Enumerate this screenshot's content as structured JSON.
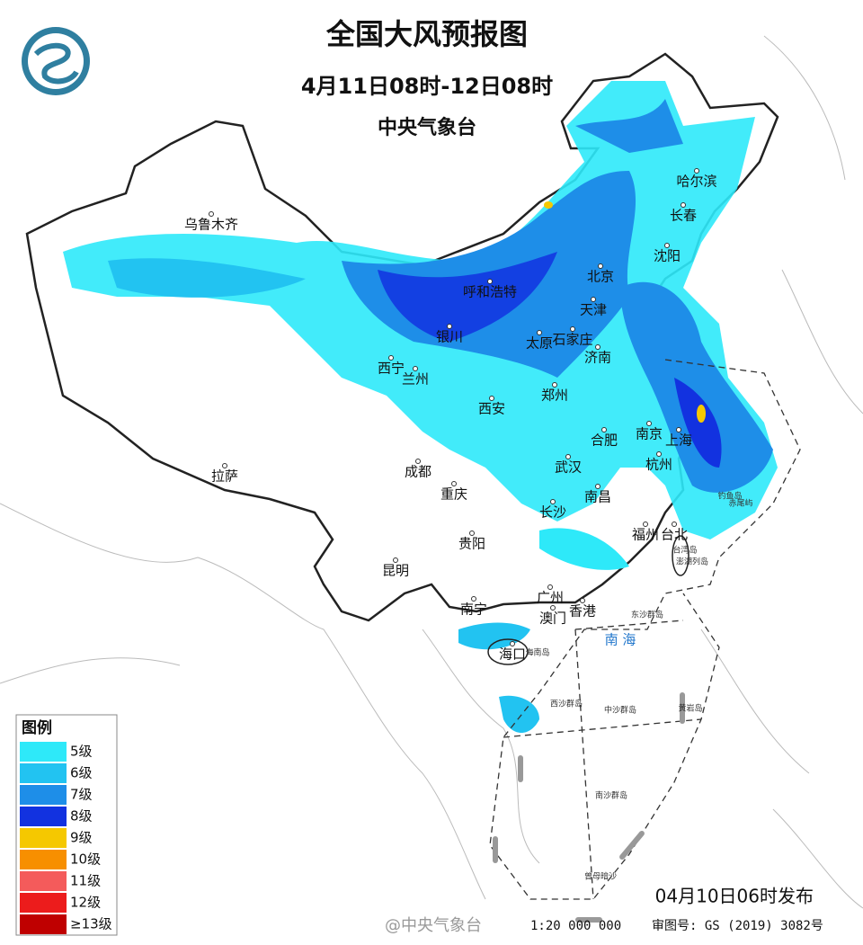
{
  "header": {
    "title": "全国大风预报图",
    "period": "4月11日08时-12日08时",
    "agency": "中央气象台"
  },
  "legend": {
    "title": "图例",
    "items": [
      {
        "label": "5级",
        "color": "#2ee9f9"
      },
      {
        "label": "6级",
        "color": "#22c3f1"
      },
      {
        "label": "7级",
        "color": "#1e8ee8"
      },
      {
        "label": "8级",
        "color": "#1232e0"
      },
      {
        "label": "9级",
        "color": "#f5c800"
      },
      {
        "label": "10级",
        "color": "#f78f00"
      },
      {
        "label": "11级",
        "color": "#f45b5b"
      },
      {
        "label": "12级",
        "color": "#ec1c1c"
      },
      {
        "label": "≥13级",
        "color": "#bf0000"
      }
    ]
  },
  "cities": [
    "乌鲁木齐",
    "拉萨",
    "西宁",
    "兰州",
    "银川",
    "呼和浩特",
    "北京",
    "天津",
    "石家庄",
    "太原",
    "济南",
    "郑州",
    "西安",
    "成都",
    "重庆",
    "贵阳",
    "昆明",
    "南宁",
    "广州",
    "澳门",
    "香港",
    "海口",
    "长沙",
    "武汉",
    "南昌",
    "合肥",
    "南京",
    "上海",
    "杭州",
    "福州",
    "台北",
    "沈阳",
    "长春",
    "哈尔滨"
  ],
  "places": [
    "南 海",
    "海南岛",
    "台湾岛",
    "东沙群岛",
    "西沙群岛",
    "中沙群岛",
    "黄岩岛",
    "南沙群岛",
    "曾母暗沙",
    "钓鱼岛",
    "赤尾屿",
    "澎湖列岛"
  ],
  "footer": {
    "issued": "04月10日06时发布",
    "watermark": "@中央气象台",
    "scale": "1:20 000 000",
    "approval": "审图号: GS (2019) 3082号"
  }
}
